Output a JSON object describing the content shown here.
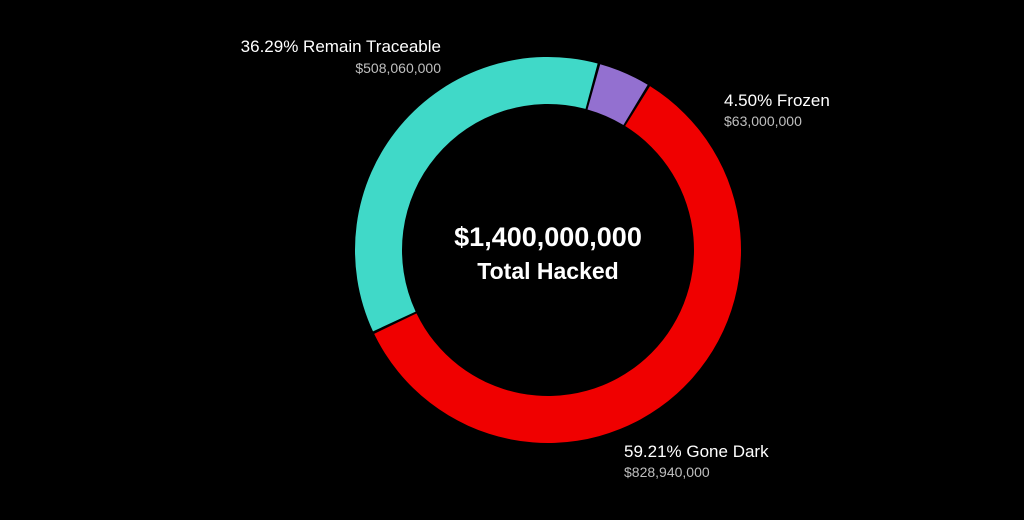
{
  "chart_data": {
    "type": "pie",
    "donut": true,
    "legend": "none",
    "center": {
      "value": "$1,400,000,000",
      "label": "Total Hacked"
    },
    "slices": [
      {
        "label": "59.21% Gone Dark",
        "amount": "$828,940,000",
        "percent": 59.21,
        "value": 828940000,
        "color": "#f00000"
      },
      {
        "label": "36.29% Remain Traceable",
        "amount": "$508,060,000",
        "percent": 36.29,
        "value": 508060000,
        "color": "#40d9c8"
      },
      {
        "label": "4.50% Frozen",
        "amount": "$63,000,000",
        "percent": 4.5,
        "value": 63000000,
        "color": "#9370d0"
      }
    ]
  }
}
